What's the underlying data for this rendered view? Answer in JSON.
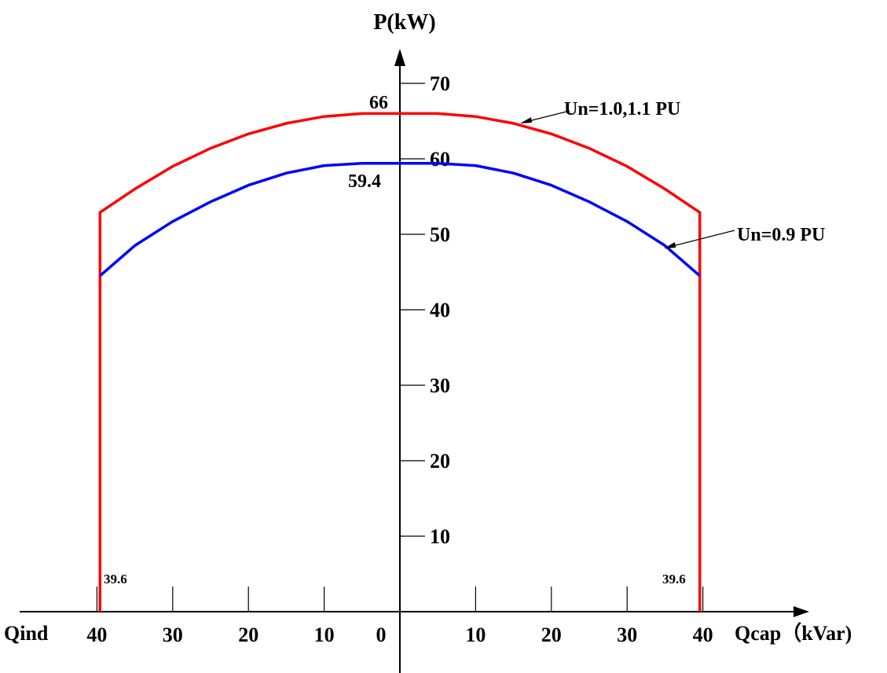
{
  "chart_data": {
    "type": "line",
    "ylabel": "P(kW)",
    "xlabel_left": "Qind",
    "xlabel_right": "Qcap（kVar)",
    "x_ticks_left": [
      "40",
      "30",
      "20",
      "10",
      "0"
    ],
    "x_ticks_right": [
      "10",
      "20",
      "30",
      "40"
    ],
    "y_ticks": [
      "10",
      "20",
      "30",
      "40",
      "50",
      "60",
      "70"
    ],
    "xlim": [
      -40,
      40
    ],
    "ylim": [
      0,
      70
    ],
    "annotations": {
      "peak_red": "66",
      "peak_blue": "59.4",
      "limit_left": "39.6",
      "limit_right": "39.6"
    },
    "series": [
      {
        "name": "Un=1.0,1.1 PU",
        "color": "#ff0000",
        "x": [
          -39.6,
          -39.6,
          -35,
          -30,
          -25,
          -20,
          -15,
          -10,
          -5,
          0,
          5,
          10,
          15,
          20,
          25,
          30,
          35,
          39.6,
          39.6
        ],
        "y": [
          0,
          52.9,
          56.0,
          59.0,
          61.4,
          63.3,
          64.7,
          65.6,
          66.0,
          66.0,
          66.0,
          65.6,
          64.7,
          63.3,
          61.4,
          59.0,
          56.0,
          52.9,
          0
        ]
      },
      {
        "name": "Un=0.9 PU",
        "color": "#0000ff",
        "x": [
          -39.6,
          -35,
          -30,
          -25,
          -20,
          -15,
          -10,
          -5,
          0,
          5,
          10,
          15,
          20,
          25,
          30,
          35,
          39.6
        ],
        "y": [
          44.5,
          48.5,
          51.7,
          54.3,
          56.5,
          58.1,
          59.1,
          59.4,
          59.4,
          59.4,
          59.1,
          58.1,
          56.5,
          54.3,
          51.7,
          48.5,
          44.5
        ]
      }
    ]
  }
}
